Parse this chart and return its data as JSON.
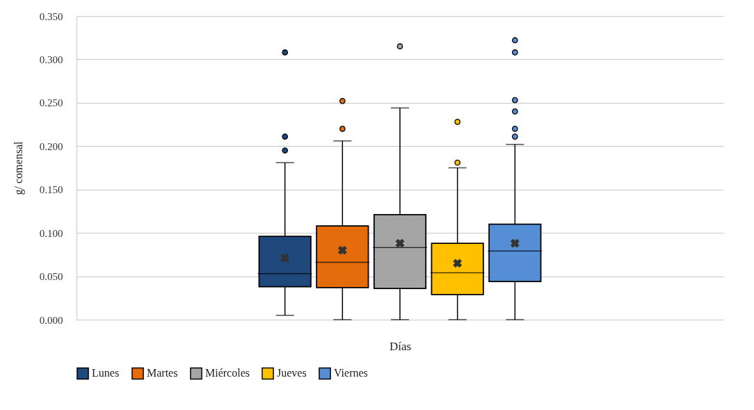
{
  "chart_data": {
    "type": "box",
    "xlabel": "Días",
    "ylabel": "g/ comensal",
    "categories": [
      null
    ],
    "ylim": [
      0,
      0.35
    ],
    "yticks": [
      {
        "value": 0,
        "label": "0.000"
      },
      {
        "value": 0.05,
        "label": "0.050"
      },
      {
        "value": 0.1,
        "label": "0.100"
      },
      {
        "value": 0.15,
        "label": "0.150"
      },
      {
        "value": 0.2,
        "label": "0.200"
      },
      {
        "value": 0.25,
        "label": "0.250"
      },
      {
        "value": 0.3,
        "label": "0.300"
      },
      {
        "value": 0.35,
        "label": "0.350"
      }
    ],
    "grid": "y",
    "legend": "bottom",
    "series": [
      {
        "name": "Lunes",
        "color": "#1f497d",
        "boxes": [
          {
            "low": 0.005,
            "q1": 0.038,
            "median": 0.053,
            "q3": 0.096,
            "high": 0.181,
            "mean": 0.071,
            "outliers": [
              0.308,
              0.211,
              0.195
            ]
          }
        ]
      },
      {
        "name": "Martes",
        "color": "#e46c0a",
        "boxes": [
          {
            "low": 0,
            "q1": 0.037,
            "median": 0.066,
            "q3": 0.108,
            "high": 0.206,
            "mean": 0.08,
            "outliers": [
              0.252,
              0.22
            ]
          }
        ]
      },
      {
        "name": "Miércoles",
        "color": "#a5a5a5",
        "boxes": [
          {
            "low": 0,
            "q1": 0.036,
            "median": 0.083,
            "q3": 0.121,
            "high": 0.244,
            "mean": 0.088,
            "outliers": [
              0.315
            ]
          }
        ]
      },
      {
        "name": "Jueves",
        "color": "#ffc000",
        "boxes": [
          {
            "low": 0,
            "q1": 0.029,
            "median": 0.054,
            "q3": 0.088,
            "high": 0.175,
            "mean": 0.065,
            "outliers": [
              0.228,
              0.181
            ]
          }
        ]
      },
      {
        "name": "Viernes",
        "color": "#558ed5",
        "boxes": [
          {
            "low": 0,
            "q1": 0.044,
            "median": 0.079,
            "q3": 0.11,
            "high": 0.202,
            "mean": 0.088,
            "outliers": [
              0.322,
              0.308,
              0.253,
              0.24,
              0.22,
              0.211
            ]
          }
        ]
      }
    ]
  }
}
